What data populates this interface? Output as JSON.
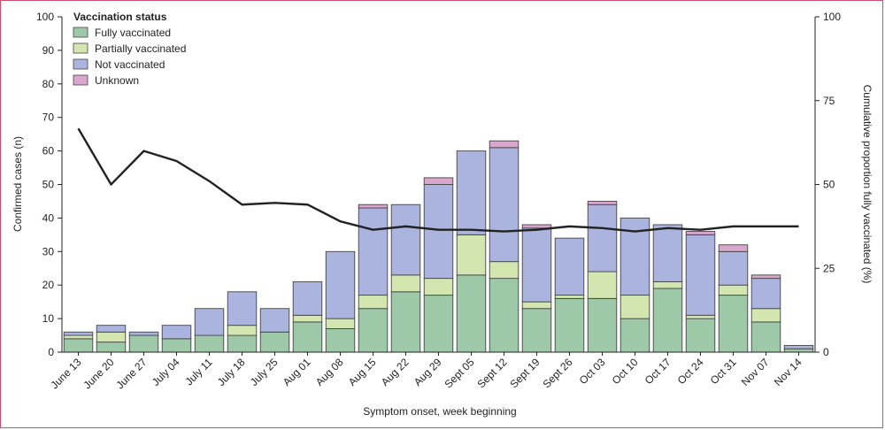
{
  "chart_data": {
    "type": "bar",
    "stacked": true,
    "categories": [
      "June 13",
      "June 20",
      "June 27",
      "July 04",
      "July 11",
      "July 18",
      "July 25",
      "Aug 01",
      "Aug 08",
      "Aug 15",
      "Aug 22",
      "Aug 29",
      "Sept 05",
      "Sept 12",
      "Sept 19",
      "Sept 26",
      "Oct 03",
      "Oct 10",
      "Oct 17",
      "Oct 24",
      "Oct 31",
      "Nov 07",
      "Nov 14"
    ],
    "series": [
      {
        "name": "Fully vaccinated",
        "color": "#9ec9a8",
        "values": [
          4,
          3,
          5,
          4,
          5,
          5,
          6,
          9,
          7,
          13,
          18,
          17,
          23,
          22,
          13,
          16,
          16,
          10,
          19,
          10,
          17,
          9,
          1
        ]
      },
      {
        "name": "Partially vaccinated",
        "color": "#d4e6b0",
        "values": [
          1,
          3,
          0,
          0,
          0,
          3,
          0,
          2,
          3,
          4,
          5,
          5,
          12,
          5,
          2,
          1,
          8,
          7,
          2,
          1,
          3,
          4,
          0
        ]
      },
      {
        "name": "Not vaccinated",
        "color": "#aab4de",
        "values": [
          1,
          2,
          1,
          4,
          8,
          10,
          7,
          10,
          20,
          26,
          21,
          28,
          25,
          34,
          22,
          17,
          20,
          23,
          17,
          24,
          10,
          9,
          1
        ]
      },
      {
        "name": "Unknown",
        "color": "#d9a7cd",
        "values": [
          0,
          0,
          0,
          0,
          0,
          0,
          0,
          0,
          0,
          1,
          0,
          2,
          0,
          2,
          1,
          0,
          1,
          0,
          0,
          1,
          2,
          1,
          0
        ]
      }
    ],
    "line": {
      "name": "Cumulative proportion fully vaccinated",
      "axis": "right",
      "color": "#222222",
      "values": [
        66.7,
        50,
        60,
        57,
        51,
        44,
        44.5,
        44,
        39,
        36.5,
        37.5,
        36.5,
        36.5,
        36,
        36.5,
        37.5,
        37,
        36,
        37,
        36.5,
        37.5,
        37.5,
        37.5
      ]
    },
    "legend_title": "Vaccination status",
    "legend_position": "top-left",
    "xlabel": "Symptom onset, week beginning",
    "ylabel": "Confirmed cases (n)",
    "y2label": "Cumulative proportion fully vaccinated (%)",
    "ylim": [
      0,
      100
    ],
    "yticks": [
      0,
      10,
      20,
      30,
      40,
      50,
      60,
      70,
      80,
      90,
      100
    ],
    "y2lim": [
      0,
      100
    ],
    "y2ticks": [
      0,
      25,
      50,
      75,
      100
    ],
    "grid": false
  }
}
